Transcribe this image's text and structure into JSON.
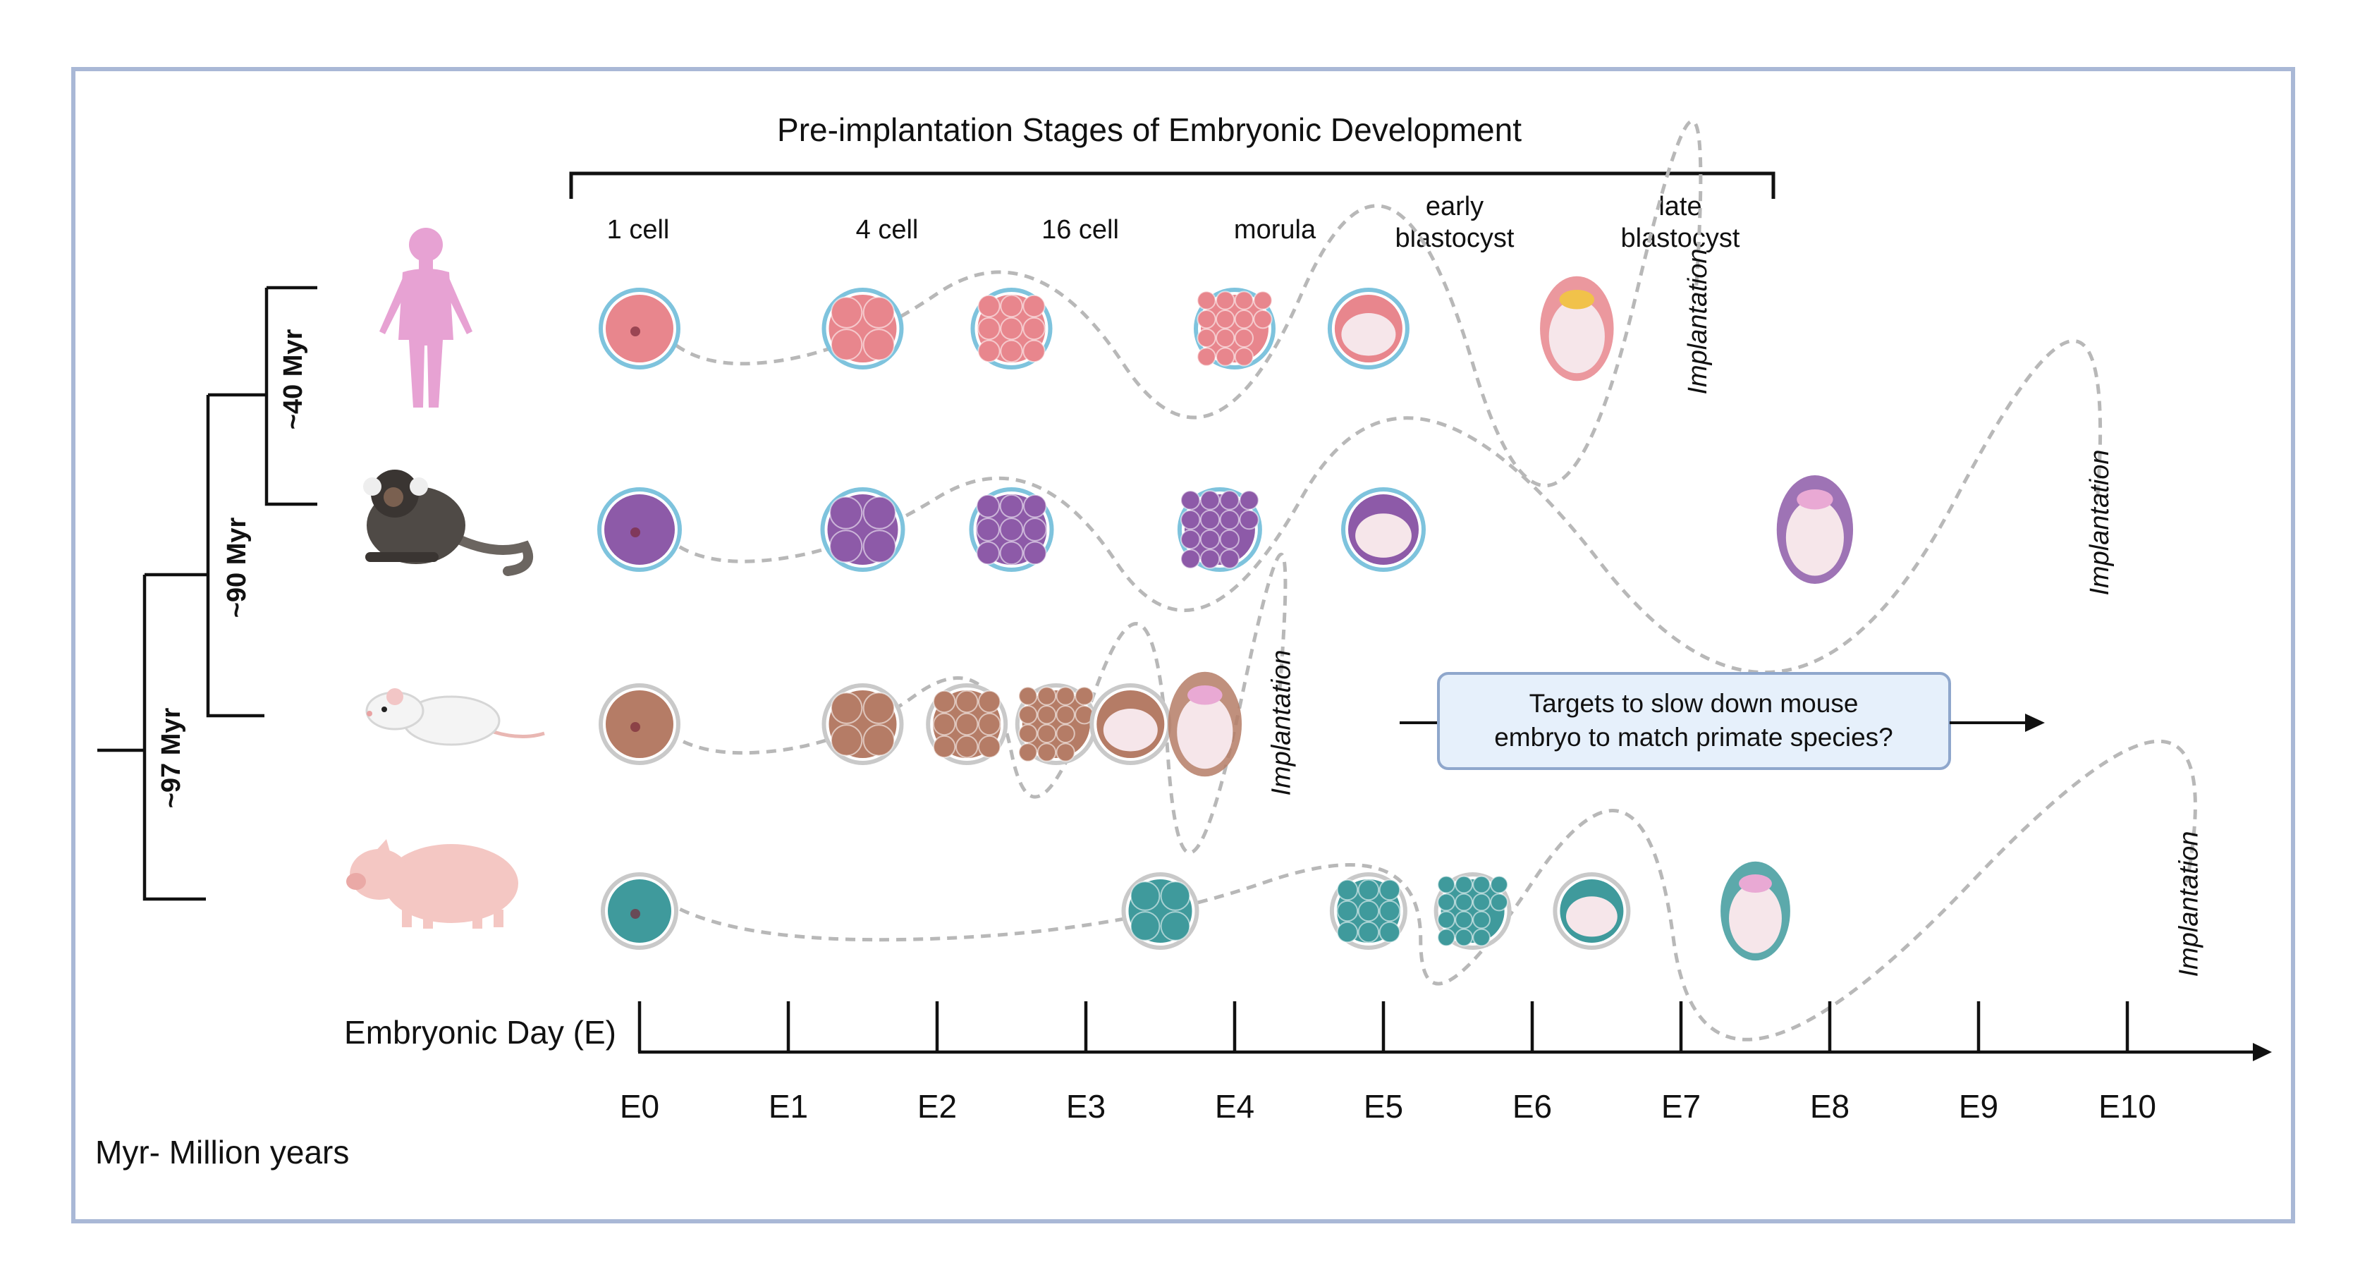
{
  "title": "Pre-implantation Stages of Embryonic Development",
  "stages": [
    "1 cell",
    "4 cell",
    "16 cell",
    "morula",
    "early blastocyst",
    "late blastocyst"
  ],
  "axis": {
    "label": "Embryonic Day (E)",
    "ticks": [
      "E0",
      "E1",
      "E2",
      "E3",
      "E4",
      "E5",
      "E6",
      "E7",
      "E8",
      "E9",
      "E10"
    ]
  },
  "implantation_label": "Implantation",
  "phylogeny": {
    "node_97": "~97 Myr",
    "node_90": "~90 Myr",
    "node_40": "~40 Myr"
  },
  "legend_note": "Myr- Million years",
  "callout": "Targets to slow down mouse embryo to match primate species?",
  "species": [
    {
      "name": "human",
      "color": "#e8868d",
      "stages_days": [
        0,
        1.5,
        2.5,
        4.0,
        4.9,
        6.3
      ],
      "implantation_day": 7.1
    },
    {
      "name": "marmoset",
      "color": "#8d5aa8",
      "stages_days": [
        0,
        1.5,
        2.5,
        3.9,
        5.0,
        7.9
      ],
      "implantation_day": 9.8
    },
    {
      "name": "mouse",
      "color": "#b57c66",
      "stages_days": [
        0,
        1.5,
        2.2,
        2.8,
        3.3,
        3.8
      ],
      "implantation_day": 4.3
    },
    {
      "name": "pig",
      "color": "#3f9a9c",
      "stages_days": [
        0,
        3.5,
        4.9,
        5.6,
        6.4,
        7.5
      ],
      "implantation_day": 10.4
    }
  ],
  "colors": {
    "frame": "#a9b8d6",
    "callout_fill": "#e6f0fb",
    "callout_border": "#8fa7cc",
    "path": "#b8b8b8"
  }
}
